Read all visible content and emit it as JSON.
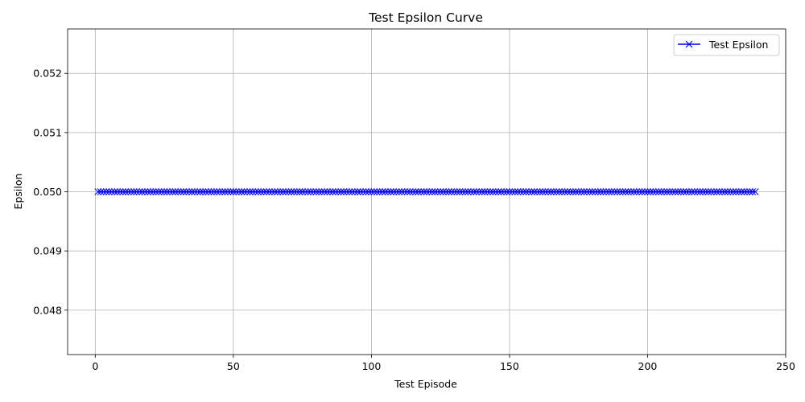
{
  "chart_data": {
    "type": "line",
    "title": "Test Epsilon Curve",
    "xlabel": "Test Episode",
    "ylabel": "Epsilon",
    "xlim": [
      -10,
      250
    ],
    "ylim": [
      0.04725,
      0.05275
    ],
    "xticks": [
      0,
      50,
      100,
      150,
      200,
      250
    ],
    "xtick_labels": [
      "0",
      "50",
      "100",
      "150",
      "200",
      "250"
    ],
    "yticks": [
      0.048,
      0.049,
      0.05,
      0.051,
      0.052
    ],
    "ytick_labels": [
      "0.048",
      "0.049",
      "0.050",
      "0.051",
      "0.052"
    ],
    "grid": true,
    "legend_position": "top-right",
    "series": [
      {
        "name": "Test Epsilon",
        "color": "#0000ff",
        "marker": "x",
        "x_start": 1,
        "x_end": 239,
        "x_step": 1,
        "y_constant": 0.05
      }
    ]
  }
}
